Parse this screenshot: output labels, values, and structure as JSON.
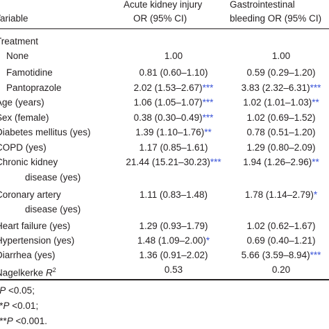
{
  "header": {
    "variable": "Variable",
    "col1_line1": "Acute kidney injury",
    "col1_line2": "OR (95% CI)",
    "col2_line1": "Gastrointestinal",
    "col2_line2": "bleeding OR (95% CI)"
  },
  "rows": [
    {
      "label": "Treatment",
      "v1": "",
      "s1": "",
      "v2": "",
      "s2": ""
    },
    {
      "label": "None",
      "v1": "1.00",
      "s1": "",
      "v2": "1.00",
      "s2": ""
    },
    {
      "label": "Famotidine",
      "v1": "0.81 (0.60–1.10)",
      "s1": "",
      "v2": "0.59 (0.29–1.20)",
      "s2": ""
    },
    {
      "label": "Pantoprazole",
      "v1": "2.02 (1.53–2.67)",
      "s1": "***",
      "v2": "3.83 (2.32–6.31)",
      "s2": "***"
    },
    {
      "label": "Age (years)",
      "v1": "1.06 (1.05–1.07)",
      "s1": "***",
      "v2": "1.02 (1.01–1.03)",
      "s2": "**"
    },
    {
      "label": "Sex (female)",
      "v1": "0.38 (0.30–0.49)",
      "s1": "***",
      "v2": "1.02 (0.69–1.52)",
      "s2": ""
    },
    {
      "label": "Diabetes mellitus (yes)",
      "v1": "1.39 (1.10–1.76)",
      "s1": "**",
      "v2": "0.78 (0.51–1.20)",
      "s2": ""
    },
    {
      "label": "COPD (yes)",
      "v1": "1.17 (0.85–1.61)",
      "s1": "",
      "v2": "1.29 (0.80–2.09)",
      "s2": ""
    },
    {
      "label": "Chronic kidney",
      "label2": "disease (yes)",
      "v1": "21.44 (15.21–30.23)",
      "s1": "***",
      "v2": "1.94 (1.26–2.96)",
      "s2": "**"
    },
    {
      "label": "Coronary artery",
      "label2": "disease (yes)",
      "v1": "1.11 (0.83–1.48)",
      "s1": "",
      "v2": "1.78 (1.14–2.79)",
      "s2": "*"
    },
    {
      "label": "Heart failure (yes)",
      "v1": "1.29 (0.93–1.79)",
      "s1": "",
      "v2": "1.02 (0.62–1.67)",
      "s2": ""
    },
    {
      "label": "Hypertension (yes)",
      "v1": "1.48 (1.09–2.00)",
      "s1": "*",
      "v2": "0.69 (0.40–1.21)",
      "s2": ""
    },
    {
      "label": "Diarrhea (yes)",
      "v1": "1.36 (0.91–2.02)",
      "s1": "",
      "v2": "5.66 (3.59–8.94)",
      "s2": "***"
    },
    {
      "label": "Nagelkerke ",
      "label_italic": "R",
      "label_sup": "2",
      "v1": "0.53",
      "s1": "",
      "v2": "0.20",
      "s2": ""
    }
  ],
  "footnotes": [
    {
      "prefix": "*",
      "italic": "P",
      "text": " <0.05;"
    },
    {
      "prefix": "**",
      "italic": "P",
      "text": " <0.01;"
    },
    {
      "prefix": "***",
      "italic": "P",
      "text": " <0.001."
    }
  ]
}
